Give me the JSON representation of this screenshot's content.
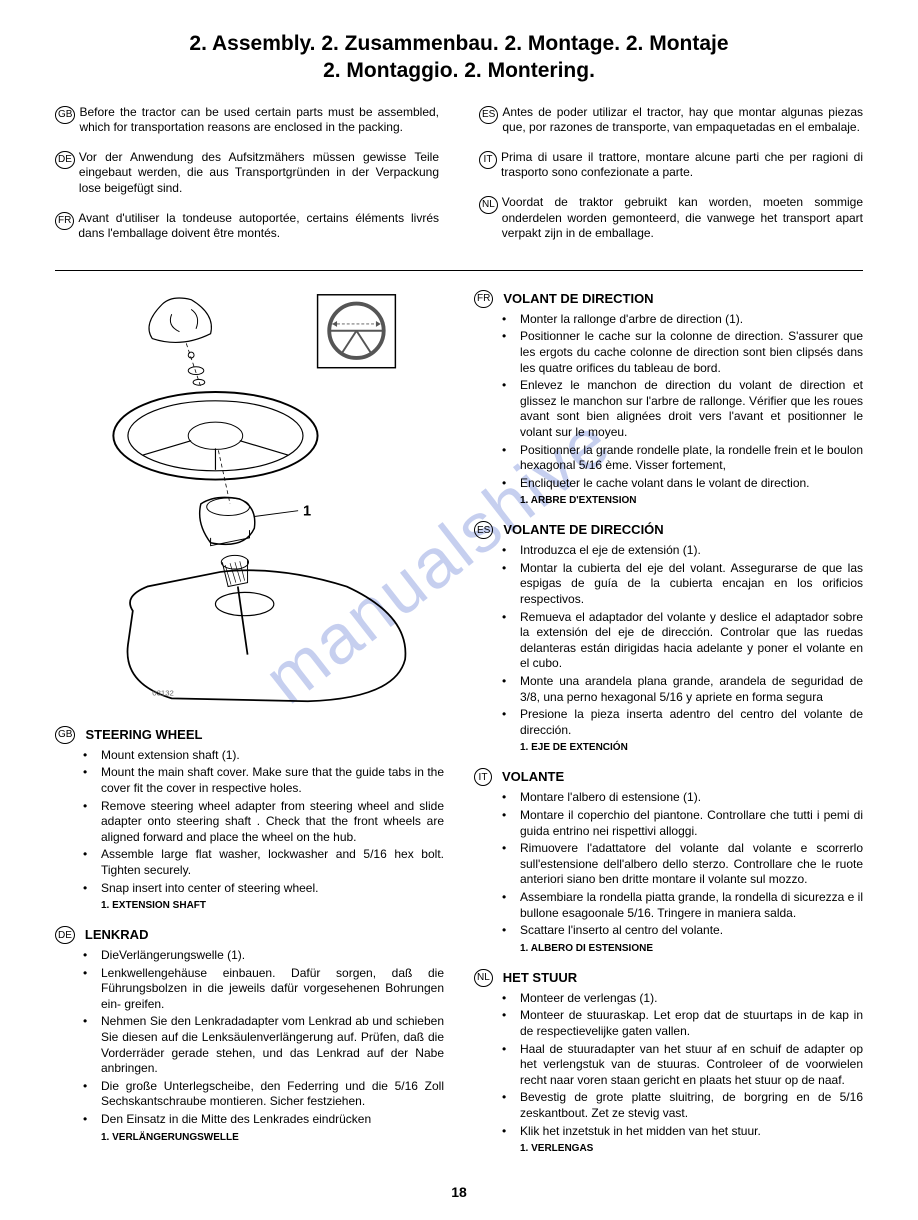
{
  "title_line1": "2. Assembly. 2. Zusammenbau. 2. Montage. 2. Montaje",
  "title_line2": "2. Montaggio. 2. Montering.",
  "watermark": "manualshive",
  "intro": {
    "left": [
      {
        "lang": "GB",
        "text": "Before the tractor can be used certain parts must be assembled, which for transportation reasons are enclosed in the packing."
      },
      {
        "lang": "DE",
        "text": "Vor der Anwendung des Aufsitzmähers müssen gewisse Teile eingebaut werden, die aus Transportgründen in der Verpackung lose beigefügt sind."
      },
      {
        "lang": "FR",
        "text": "Avant d'utiliser la tondeuse autoportée, certains éléments livrés dans l'emballage doivent être montés."
      }
    ],
    "right": [
      {
        "lang": "ES",
        "text": "Antes de poder utilizar el tractor, hay que montar algunas piezas que, por razones de transporte, van empaquetadas en el embalaje."
      },
      {
        "lang": "IT",
        "text": "Prima di usare il trattore, montare alcune parti che per ragioni di trasporto sono confezionate a parte."
      },
      {
        "lang": "NL",
        "text": "Voordat de traktor gebruikt kan worden, moeten sommige onderdelen worden gemonteerd, die vanwege het transport apart verpakt zijn in de emballage."
      }
    ]
  },
  "illustration_callout": "1",
  "sections_left": [
    {
      "lang": "GB",
      "title": "STEERING WHEEL",
      "items": [
        "Mount extension shaft (1).",
        "Mount the main shaft cover.  Make sure that the guide tabs in the cover fit the cover in respective holes.",
        "Remove steering wheel adapter from steering wheel and slide adapter onto steering shaft . Check that the front wheels are aligned forward and place the wheel on the hub.",
        "Assemble large flat washer, lockwasher and 5/16 hex bolt.  Tighten securely.",
        "Snap insert into center of steering wheel."
      ],
      "note": "1. EXTENSION SHAFT"
    },
    {
      "lang": "DE",
      "title": "LENKRAD",
      "items": [
        "DieVerlängerungswelle (1).",
        "Lenkwellengehäuse einbauen. Dafür sorgen, daß die Führungsbolzen in die jeweils dafür vorgesehenen Bohrungen ein- greifen.",
        "Nehmen Sie den Lenkradadapter vom Lenkrad ab und schieben Sie diesen auf die Lenksäulenverlängerung auf.  Prüfen, daß die Vorderräder gerade stehen, und das Lenkrad auf der Nabe anbringen.",
        "Die große Unterlegscheibe, den Federring und die 5/16 Zoll Sechskantschraube montieren. Sicher festziehen.",
        "Den Einsatz in die Mitte des Lenkrades eindrücken"
      ],
      "note": "1. VERLÄNGERUNGSWELLE"
    }
  ],
  "sections_right": [
    {
      "lang": "FR",
      "title": "VOLANT DE DIRECTION",
      "items": [
        "Monter la rallonge d'arbre de direction (1).",
        "Positionner le cache sur la colonne de direction. S'assurer que les ergots du cache colonne de direction sont bien clipsés dans les quatre orifices du tableau de bord.",
        "Enlevez le manchon de direction du volant de direction et glissez le manchon sur l'arbre de rallonge.  Vérifier que les roues avant sont bien alignées droit vers l'avant et positionner le volant sur le moyeu.",
        "Positionner la grande rondelle plate, la rondelle frein et le boulon hexagonal 5/16 ème. Visser fortement,",
        "Encliqueter le cache volant dans le volant de direction."
      ],
      "note": "1. ARBRE D'EXTENSION"
    },
    {
      "lang": "ES",
      "title": "VOLANTE DE DIRECCIÓN",
      "items": [
        "Introduzca el eje de extensión (1).",
        "Montar la cubierta del eje del volant.  Assegurarse de que las espigas de guía de la cubierta encajan en los orificios respectivos.",
        "Remueva el adaptador del volante y deslice el adaptador sobre la extensión del eje de dirección.  Controlar que las ruedas delanteras están dirigidas hacia adelante y poner el volante en el cubo.",
        "Monte una arandela plana grande, arandela de seguridad de 3/8, una perno hexagonal 5/16 y apriete en forma segura",
        "Presione la pieza  inserta adentro del centro del volante de dirección."
      ],
      "note": "1. EJE DE EXTENCIÓN"
    },
    {
      "lang": "IT",
      "title": "VOLANTE",
      "items": [
        "Montare l'albero di estensione (1).",
        "Montare il coperchio del piantone. Controllare che tutti i pemi di guida entrino nei rispettivi alloggi.",
        "Rimuovere l'adattatore del volante dal volante e scorrerlo sull'estensione dell'albero dello sterzo. Controllare che le ruote anteriori siano ben dritte montare il volante sul mozzo.",
        "Assembiare la rondella piatta grande, la rondella di sicurezza e il bullone esagoonale 5/16. Tringere in maniera salda.",
        "Scattare l'inserto al centro del volante."
      ],
      "note": "1. ALBERO DI ESTENSIONE"
    },
    {
      "lang": "NL",
      "title": "HET STUUR",
      "items": [
        "Monteer de verlengas (1).",
        "Monteer de stuuraskap. Let erop dat de stuurtaps in de kap in de respectievelijke gaten vallen.",
        "Haal de stuuradapter van het stuur af en schuif de adapter op het verlengstuk van de stuuras.  Controleer of de voorwielen recht naar voren staan gericht en plaats het stuur op de naaf.",
        "Bevestig de grote platte sluitring, de borgring en de 5/16 zeskantbout.  Zet ze stevig vast.",
        "Klik het inzetstuk in het midden van het stuur."
      ],
      "note": "1. VERLENGAS"
    }
  ],
  "page_number": "18"
}
